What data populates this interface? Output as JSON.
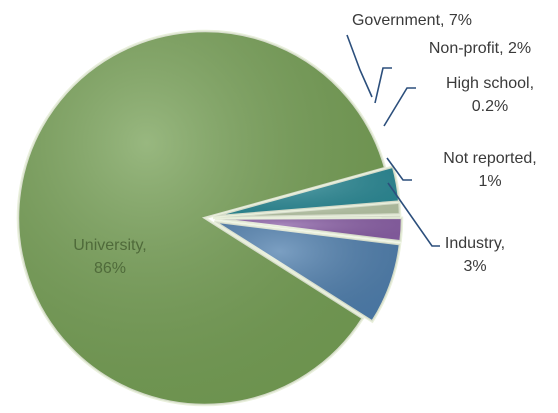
{
  "chart_data": {
    "type": "pie",
    "slices": [
      {
        "name": "University",
        "value": 86,
        "label_lines": [
          "University,",
          "86%"
        ],
        "color": "#76a055"
      },
      {
        "name": "Government",
        "value": 7,
        "label_lines": [
          "Government, 7%"
        ],
        "color": "#4f7fae"
      },
      {
        "name": "Non-profit",
        "value": 2,
        "label_lines": [
          "Non-profit, 2%"
        ],
        "color": "#8a5fa6"
      },
      {
        "name": "High school",
        "value": 0.2,
        "label_lines": [
          "High school,",
          "0.2%"
        ],
        "color": "#c9a45a"
      },
      {
        "name": "Not reported",
        "value": 1,
        "label_lines": [
          "Not reported,",
          "1%"
        ],
        "color": "#b8c7a6"
      },
      {
        "name": "Industry",
        "value": 3,
        "label_lines": [
          "Industry,",
          "3%"
        ],
        "color": "#2b8a96"
      }
    ],
    "leader_color": "#2c4f7c"
  }
}
